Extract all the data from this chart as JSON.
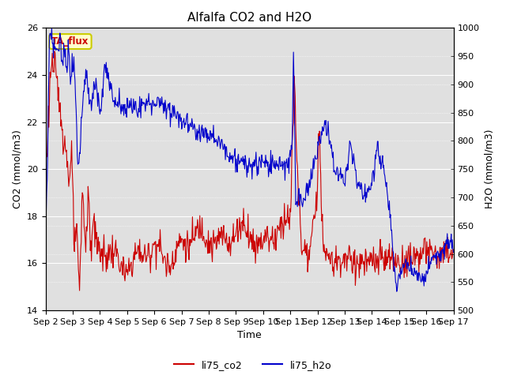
{
  "title": "Alfalfa CO2 and H2O",
  "xlabel": "Time",
  "ylabel_left": "CO2 (mmol/m3)",
  "ylabel_right": "H2O (mmol/m3)",
  "ylim_left": [
    14,
    26
  ],
  "ylim_right": [
    500,
    1000
  ],
  "xtick_labels": [
    "Sep 2",
    "Sep 3",
    "Sep 4",
    "Sep 5",
    "Sep 6",
    "Sep 7",
    "Sep 8",
    "Sep 9",
    "Sep 10",
    "Sep 11",
    "Sep 12",
    "Sep 13",
    "Sep 14",
    "Sep 15",
    "Sep 16",
    "Sep 17"
  ],
  "legend_labels": [
    "li75_co2",
    "li75_h2o"
  ],
  "tag_label": "TA_flux",
  "tag_bg": "#ffffcc",
  "tag_border": "#cccc00",
  "plot_bg": "#e0e0e0",
  "line_color_co2": "#cc0000",
  "line_color_h2o": "#0000cc",
  "title_fontsize": 11,
  "label_fontsize": 9,
  "tick_fontsize": 8
}
